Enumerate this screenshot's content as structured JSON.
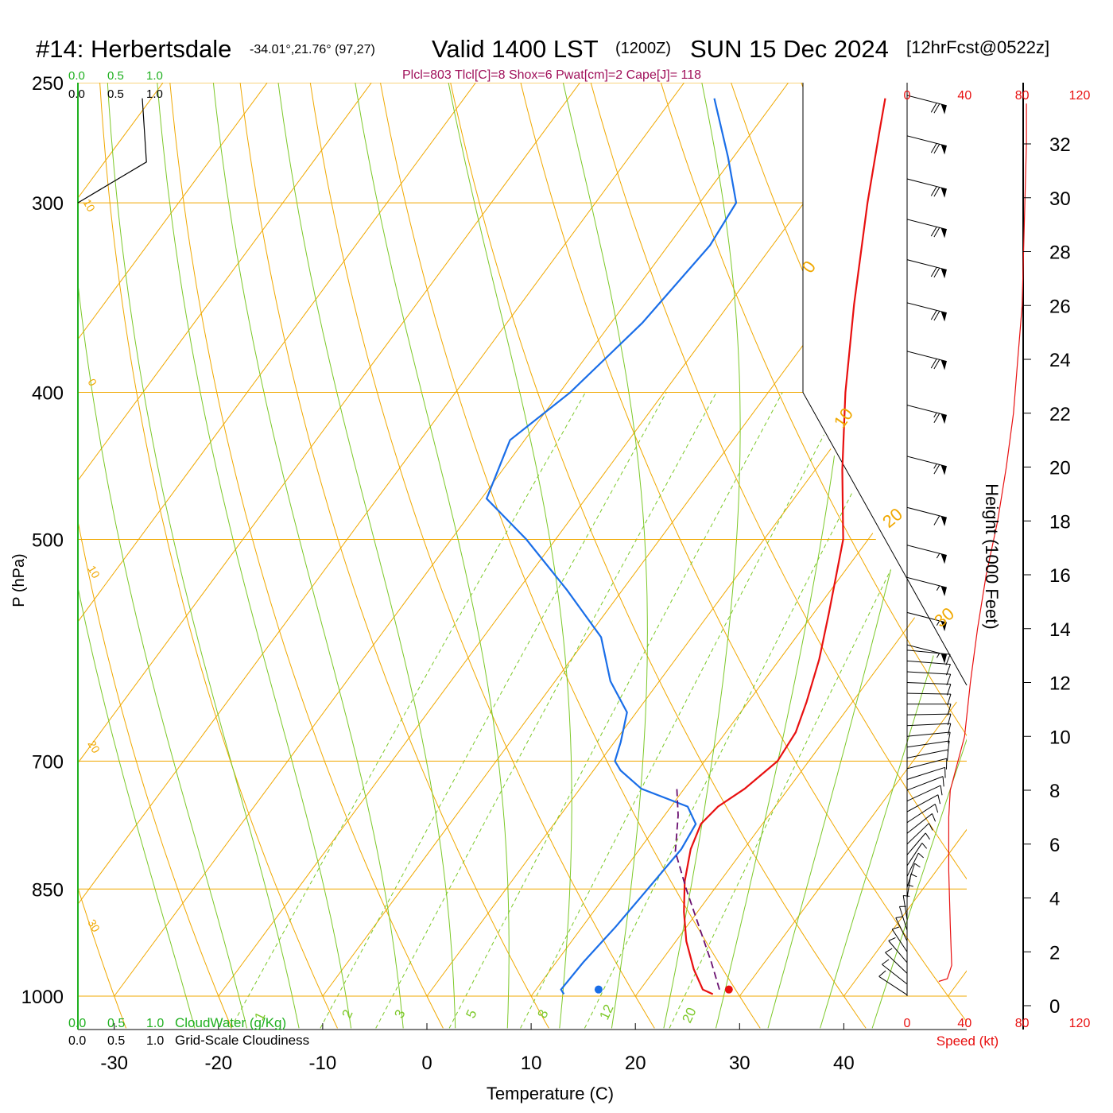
{
  "header": {
    "station": "#14: Herbertsdale",
    "coords": "-34.01°,21.76° (97,27)",
    "valid": "Valid 1400 LST",
    "zulu": "(1200Z)",
    "date": "SUN 15 Dec 2024",
    "forecast": "[12hrFcst@0522z]",
    "params": "Plcl=803 Tlcl[C]=8 Shox=6 Pwat[cm]=2 Cape[J]= 118"
  },
  "colors": {
    "temperature": "#e81010",
    "dewpoint": "#1a6ee8",
    "parcel": "#6a1070",
    "isobar": "#f0a800",
    "mixing_ratio": "#7cc828",
    "cloud_green": "#20b020",
    "speed_red": "#e81010",
    "params_text": "#a0105a"
  },
  "chart_data": {
    "type": "skew-t",
    "xlabel": "Temperature (C)",
    "ylabel": "P (hPa)",
    "y2label": "Height (1000 Feet)",
    "x_ticks": [
      "-30",
      "-20",
      "-10",
      "0",
      "10",
      "20",
      "30",
      "40"
    ],
    "pressure_ticks": [
      "250",
      "300",
      "400",
      "500",
      "700",
      "850",
      "1000"
    ],
    "height_ticks": [
      "0",
      "2",
      "4",
      "6",
      "8",
      "10",
      "12",
      "14",
      "16",
      "18",
      "20",
      "22",
      "24",
      "26",
      "28",
      "30",
      "32"
    ],
    "isotherm_labels": [
      "30",
      "20",
      "10",
      "0",
      "-10",
      "-20",
      "-30",
      "10",
      "0"
    ],
    "dry_adiabat_labels": [
      "10",
      "20",
      "30"
    ],
    "mixing_ratio_labels": [
      "1",
      "2",
      "3",
      "5",
      "8",
      "12",
      "20"
    ],
    "top_cloud_scale_green": [
      "0.0",
      "0.5",
      "1.0"
    ],
    "top_cloud_scale_black": [
      "0.0",
      "0.5",
      "1.0"
    ],
    "bottom_cloud_scale_green": [
      "0.0",
      "0.5",
      "1.0"
    ],
    "bottom_cloud_scale_black": [
      "0.0",
      "0.5",
      "1.0"
    ],
    "cloudwater_label": "CloudWater (g/Kg)",
    "cloudiness_label": "Grid-Scale Cloudiness",
    "speed_ticks": [
      "0",
      "40",
      "80",
      "120"
    ],
    "speed_label": "Speed (kt)",
    "temperature": [
      {
        "p": 997,
        "t": 27.3
      },
      {
        "p": 990,
        "t": 26.0
      },
      {
        "p": 960,
        "t": 23.7
      },
      {
        "p": 920,
        "t": 21.0
      },
      {
        "p": 880,
        "t": 18.7
      },
      {
        "p": 840,
        "t": 16.6
      },
      {
        "p": 800,
        "t": 14.9
      },
      {
        "p": 770,
        "t": 14.1
      },
      {
        "p": 750,
        "t": 14.5
      },
      {
        "p": 730,
        "t": 15.8
      },
      {
        "p": 700,
        "t": 17.0
      },
      {
        "p": 670,
        "t": 16.7
      },
      {
        "p": 640,
        "t": 15.6
      },
      {
        "p": 600,
        "t": 13.8
      },
      {
        "p": 560,
        "t": 11.5
      },
      {
        "p": 500,
        "t": 7.6
      },
      {
        "p": 450,
        "t": 2.6
      },
      {
        "p": 400,
        "t": -2.6
      },
      {
        "p": 350,
        "t": -8.0
      },
      {
        "p": 300,
        "t": -13.9
      },
      {
        "p": 270,
        "t": -17.7
      },
      {
        "p": 256,
        "t": -19.6
      }
    ],
    "dewpoint": [
      {
        "p": 997,
        "t": 13.0
      },
      {
        "p": 990,
        "t": 12.4
      },
      {
        "p": 950,
        "t": 12.6
      },
      {
        "p": 900,
        "t": 13.2
      },
      {
        "p": 850,
        "t": 13.6
      },
      {
        "p": 800,
        "t": 14.0
      },
      {
        "p": 770,
        "t": 13.6
      },
      {
        "p": 750,
        "t": 11.6
      },
      {
        "p": 730,
        "t": 5.9
      },
      {
        "p": 710,
        "t": 2.6
      },
      {
        "p": 700,
        "t": 1.4
      },
      {
        "p": 680,
        "t": 0.6
      },
      {
        "p": 650,
        "t": -0.9
      },
      {
        "p": 620,
        "t": -4.7
      },
      {
        "p": 580,
        "t": -8.7
      },
      {
        "p": 540,
        "t": -15.3
      },
      {
        "p": 500,
        "t": -22.8
      },
      {
        "p": 470,
        "t": -29.5
      },
      {
        "p": 430,
        "t": -31.4
      },
      {
        "p": 400,
        "t": -29.0
      },
      {
        "p": 360,
        "t": -27.0
      },
      {
        "p": 320,
        "t": -26.0
      },
      {
        "p": 300,
        "t": -26.5
      },
      {
        "p": 280,
        "t": -30.5
      },
      {
        "p": 256,
        "t": -36.0
      }
    ],
    "parcel": [
      {
        "p": 990,
        "t": 27.6
      },
      {
        "p": 950,
        "t": 24.9
      },
      {
        "p": 900,
        "t": 21.2
      },
      {
        "p": 850,
        "t": 17.3
      },
      {
        "p": 803,
        "t": 13.6
      },
      {
        "p": 760,
        "t": 11.3
      },
      {
        "p": 730,
        "t": 9.3
      }
    ],
    "surface_temperature": {
      "p": 990,
      "t": 28.5
    },
    "surface_dewpoint": {
      "p": 990,
      "t": 16.0
    },
    "cloudiness_profile": [
      {
        "p": 300,
        "v": 0.0
      },
      {
        "p": 282,
        "v": 0.98
      },
      {
        "p": 256,
        "v": 0.92
      }
    ],
    "wind_profile": [
      {
        "h": 0.4,
        "spd": 12,
        "dir": 140
      },
      {
        "h": 0.8,
        "spd": 14,
        "dir": 145
      },
      {
        "h": 1.2,
        "spd": 14,
        "dir": 150
      },
      {
        "h": 1.6,
        "spd": 14,
        "dir": 155
      },
      {
        "h": 2.0,
        "spd": 14,
        "dir": 160
      },
      {
        "h": 2.4,
        "spd": 14,
        "dir": 165
      },
      {
        "h": 2.8,
        "spd": 14,
        "dir": 170
      },
      {
        "h": 3.2,
        "spd": 14,
        "dir": 175
      },
      {
        "h": 3.6,
        "spd": 14,
        "dir": 180
      },
      {
        "h": 4.0,
        "spd": 14,
        "dir": 185
      },
      {
        "h": 4.4,
        "spd": 14,
        "dir": 190
      },
      {
        "h": 4.8,
        "spd": 14,
        "dir": 195
      },
      {
        "h": 5.2,
        "spd": 14,
        "dir": 200
      },
      {
        "h": 5.6,
        "spd": 14,
        "dir": 205
      },
      {
        "h": 6.0,
        "spd": 14,
        "dir": 210
      },
      {
        "h": 6.4,
        "spd": 14,
        "dir": 215
      },
      {
        "h": 6.8,
        "spd": 14,
        "dir": 220
      },
      {
        "h": 7.2,
        "spd": 14,
        "dir": 225
      },
      {
        "h": 7.6,
        "spd": 14,
        "dir": 230
      },
      {
        "h": 8.0,
        "spd": 14,
        "dir": 235
      },
      {
        "h": 8.4,
        "spd": 14,
        "dir": 240
      },
      {
        "h": 8.8,
        "spd": 14,
        "dir": 245
      },
      {
        "h": 9.2,
        "spd": 14,
        "dir": 250
      },
      {
        "h": 9.6,
        "spd": 14,
        "dir": 255
      },
      {
        "h": 10.0,
        "spd": 14,
        "dir": 260
      },
      {
        "h": 10.4,
        "spd": 14,
        "dir": 265
      },
      {
        "h": 10.8,
        "spd": 14,
        "dir": 268
      },
      {
        "h": 11.2,
        "spd": 14,
        "dir": 270
      },
      {
        "h": 11.6,
        "spd": 14,
        "dir": 272
      },
      {
        "h": 12.0,
        "spd": 14,
        "dir": 274
      },
      {
        "h": 12.4,
        "spd": 14,
        "dir": 276
      },
      {
        "h": 12.8,
        "spd": 14,
        "dir": 278
      },
      {
        "h": 13.2,
        "spd": 14,
        "dir": 280
      },
      {
        "h": 13.4,
        "spd": 55,
        "dir": 295
      },
      {
        "h": 14.6,
        "spd": 55,
        "dir": 295
      },
      {
        "h": 15.9,
        "spd": 55,
        "dir": 295
      },
      {
        "h": 17.1,
        "spd": 55,
        "dir": 295
      },
      {
        "h": 18.5,
        "spd": 60,
        "dir": 295
      },
      {
        "h": 20.4,
        "spd": 65,
        "dir": 295
      },
      {
        "h": 22.3,
        "spd": 65,
        "dir": 295
      },
      {
        "h": 24.3,
        "spd": 70,
        "dir": 295
      },
      {
        "h": 26.1,
        "spd": 70,
        "dir": 295
      },
      {
        "h": 27.7,
        "spd": 70,
        "dir": 295
      },
      {
        "h": 29.2,
        "spd": 70,
        "dir": 295
      },
      {
        "h": 30.7,
        "spd": 70,
        "dir": 295
      },
      {
        "h": 32.3,
        "spd": 70,
        "dir": 295
      },
      {
        "h": 33.8,
        "spd": 70,
        "dir": 295
      }
    ],
    "speed_profile": [
      {
        "h": 0.9,
        "spd": 22
      },
      {
        "h": 1.0,
        "spd": 28
      },
      {
        "h": 1.5,
        "spd": 31
      },
      {
        "h": 3.0,
        "spd": 30
      },
      {
        "h": 5.0,
        "spd": 29
      },
      {
        "h": 7.0,
        "spd": 29
      },
      {
        "h": 8.0,
        "spd": 30
      },
      {
        "h": 9.0,
        "spd": 35
      },
      {
        "h": 10.0,
        "spd": 40
      },
      {
        "h": 12.0,
        "spd": 44
      },
      {
        "h": 14.0,
        "spd": 49
      },
      {
        "h": 16.0,
        "spd": 55
      },
      {
        "h": 18.0,
        "spd": 63
      },
      {
        "h": 20.0,
        "spd": 69
      },
      {
        "h": 22.0,
        "spd": 74
      },
      {
        "h": 24.0,
        "spd": 77
      },
      {
        "h": 26.0,
        "spd": 80
      },
      {
        "h": 28.0,
        "spd": 81
      },
      {
        "h": 30.0,
        "spd": 82
      },
      {
        "h": 32.0,
        "spd": 83
      },
      {
        "h": 33.5,
        "spd": 83
      }
    ]
  }
}
